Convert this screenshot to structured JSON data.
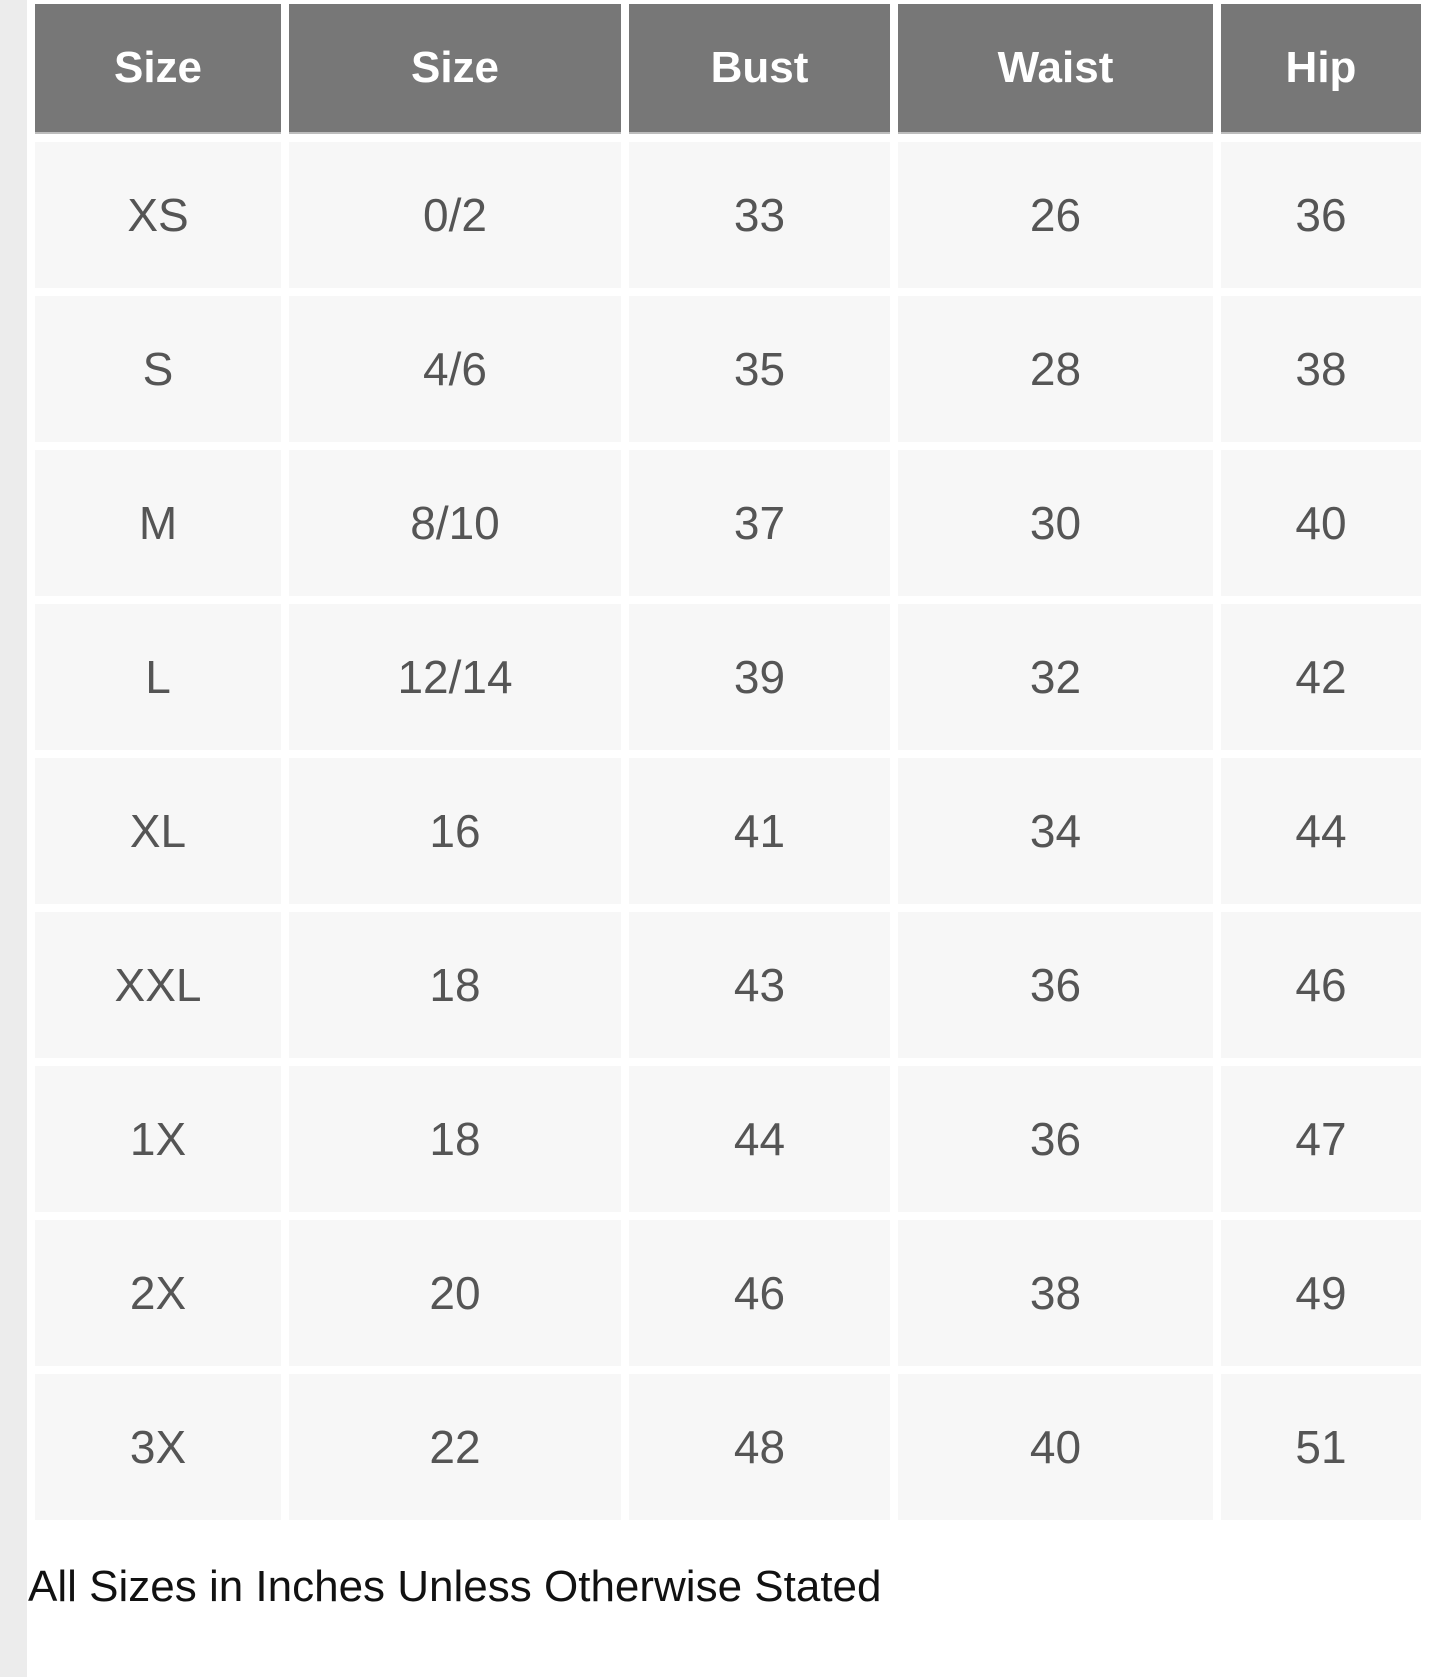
{
  "table": {
    "headers": [
      "Size",
      "Size",
      "Bust",
      "Waist",
      "Hip"
    ],
    "rows": [
      [
        "XS",
        "0/2",
        "33",
        "26",
        "36"
      ],
      [
        "S",
        "4/6",
        "35",
        "28",
        "38"
      ],
      [
        "M",
        "8/10",
        "37",
        "30",
        "40"
      ],
      [
        "L",
        "12/14",
        "39",
        "32",
        "42"
      ],
      [
        "XL",
        "16",
        "41",
        "34",
        "44"
      ],
      [
        "XXL",
        "18",
        "43",
        "36",
        "46"
      ],
      [
        "1X",
        "18",
        "44",
        "36",
        "47"
      ],
      [
        "2X",
        "20",
        "46",
        "38",
        "49"
      ],
      [
        "3X",
        "22",
        "48",
        "40",
        "51"
      ]
    ]
  },
  "note": "All Sizes in Inches Unless Otherwise Stated",
  "colors": {
    "header_bg": "#777777",
    "cell_bg": "#f7f7f7",
    "cell_text": "#555555"
  }
}
